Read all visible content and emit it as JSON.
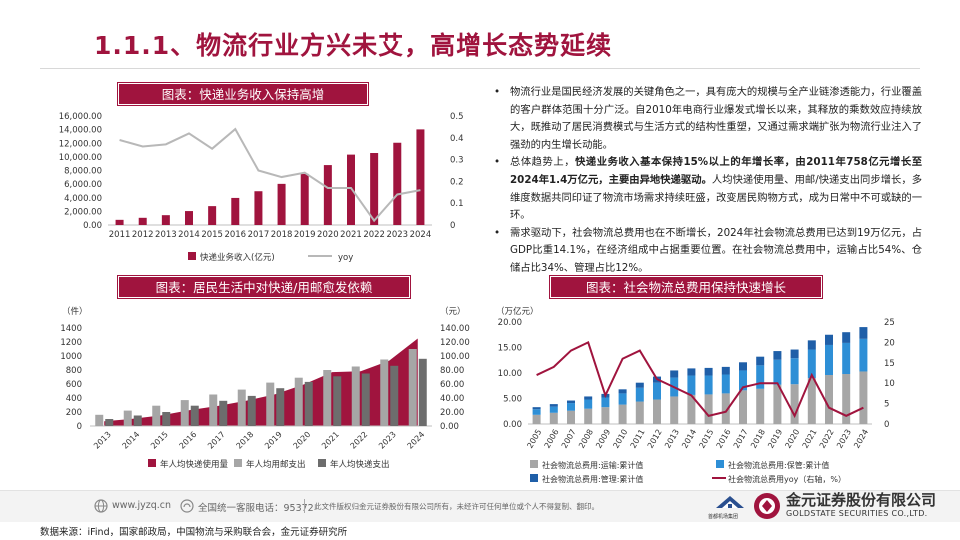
{
  "title": "1.1.1、物流行业方兴未艾，高增长态势延续",
  "banners": {
    "chart1": "图表：快递业务收入保持高增",
    "chart2": "图表：居民生活中对快递/用邮愈发依赖",
    "chart3": "图表：社会物流总费用保持快速增长"
  },
  "bullets": [
    {
      "parts": [
        {
          "t": "物流行业是国民经济发展的关键角色之一，具有庞大的规模与全产业链渗透能力，行业覆盖的客户群体范围十分广泛。自2010年电商行业爆发式增长以来，其释放的乘数效应持续放大，既推动了居民消费模式与生活方式的结构性重塑，又通过需求端扩张为物流行业注入了强劲的内生增长动能。",
          "b": false
        }
      ]
    },
    {
      "parts": [
        {
          "t": "总体趋势上，",
          "b": false
        },
        {
          "t": "快递业务收入基本保持15%以上的年增长率，由2011年758亿元增长至2024年1.4万亿元，主要由异地快递驱动。",
          "b": true
        },
        {
          "t": "人均快递使用量、用邮/快递支出同步增长，多维度数据共同印证了物流市场需求持续旺盛，改变居民购物方式，成为日常中不可或缺的一环。",
          "b": false
        }
      ]
    },
    {
      "parts": [
        {
          "t": "需求驱动下，社会物流总费用也在不断增长，2024年社会物流总费用已达到19万亿元，占GDP比重14.1%，在经济组成中占据重要位置。在社会物流总费用中，运输占比54%、仓储占比34%、管理占比12%。",
          "b": false
        }
      ]
    }
  ],
  "colors": {
    "accent": "#a0143e",
    "line_gray": "#b8b8b8",
    "bar_gray": "#a6a6a6",
    "dark_gray": "#6d6d6d",
    "blue": "#2e8fd6",
    "navy": "#1f5fa8"
  },
  "chart_data": [
    {
      "type": "bar",
      "categories": [
        "2011",
        "2012",
        "2013",
        "2014",
        "2015",
        "2016",
        "2017",
        "2018",
        "2019",
        "2020",
        "2021",
        "2022",
        "2023",
        "2024"
      ],
      "series": [
        {
          "name": "快递业务收入(亿元)",
          "axis": "left",
          "values": [
            758,
            1055,
            1442,
            2045,
            2770,
            3974,
            4957,
            6038,
            7498,
            8795,
            10332,
            10567,
            12074,
            14034
          ]
        },
        {
          "name": "yoy",
          "axis": "right",
          "type": "line",
          "values": [
            0.39,
            0.36,
            0.37,
            0.42,
            0.35,
            0.44,
            0.25,
            0.22,
            0.24,
            0.17,
            0.17,
            0.02,
            0.14,
            0.16
          ]
        }
      ],
      "yticks_left": [
        "0.00",
        "2,000.00",
        "4,000.00",
        "6,000.00",
        "8,000.00",
        "10,000.00",
        "12,000.00",
        "14,000.00",
        "16,000.00"
      ],
      "yticks_right": [
        "0",
        "0.1",
        "0.2",
        "0.3",
        "0.4",
        "0.5"
      ],
      "ylim_left": [
        0,
        16000
      ],
      "ylim_right": [
        0,
        0.5
      ],
      "legend_position": "bottom"
    },
    {
      "type": "bar",
      "categories": [
        "2013",
        "2014",
        "2015",
        "2016",
        "2017",
        "2018",
        "2019",
        "2020",
        "2021",
        "2022",
        "2023",
        "2024"
      ],
      "series": [
        {
          "name": "年人均快递使用量",
          "axis": "left",
          "type": "area",
          "values": [
            67,
            103,
            151,
            227,
            288,
            363,
            454,
            593,
            770,
            782,
            934,
            1250
          ]
        },
        {
          "name": "年人均用邮支出",
          "axis": "right",
          "values": [
            16,
            22,
            29,
            37,
            45,
            52,
            62,
            69,
            80,
            85,
            95,
            110
          ]
        },
        {
          "name": "年人均快递支出",
          "axis": "right",
          "values": [
            10,
            15,
            20,
            29,
            36,
            43,
            54,
            63,
            71,
            75,
            86,
            96
          ]
        }
      ],
      "left_unit": "（件）",
      "right_unit": "（元）",
      "yticks_left": [
        "0",
        "200",
        "400",
        "600",
        "800",
        "1000",
        "1200",
        "1400"
      ],
      "yticks_right": [
        "0.00",
        "20.00",
        "40.00",
        "60.00",
        "80.00",
        "100.00",
        "120.00",
        "140.00"
      ],
      "ylim_left": [
        0,
        1400
      ],
      "ylim_right": [
        0,
        140
      ],
      "legend_position": "bottom"
    },
    {
      "type": "bar",
      "categories": [
        "2005",
        "2006",
        "2007",
        "2008",
        "2009",
        "2010",
        "2011",
        "2012",
        "2013",
        "2014",
        "2015",
        "2016",
        "2017",
        "2018",
        "2019",
        "2020",
        "2021",
        "2022",
        "2023",
        "2024"
      ],
      "series": [
        {
          "name": "社会物流总费用:运输:累计值",
          "axis": "left",
          "values": [
            1.8,
            2.2,
            2.6,
            3.0,
            3.3,
            3.8,
            4.4,
            4.8,
            5.4,
            5.7,
            5.8,
            6.0,
            6.6,
            6.9,
            7.7,
            7.8,
            9.0,
            9.6,
            9.8,
            10.3
          ]
        },
        {
          "name": "社会物流总费用:保管:累计值",
          "axis": "left",
          "values": [
            1.1,
            1.2,
            1.5,
            1.8,
            1.9,
            2.2,
            2.7,
            3.3,
            3.7,
            3.8,
            3.7,
            3.7,
            3.9,
            4.6,
            4.9,
            5.1,
            5.6,
            5.9,
            6.1,
            6.4
          ]
        },
        {
          "name": "社会物流总费用:管理:累计值",
          "axis": "left",
          "values": [
            0.4,
            0.5,
            0.5,
            0.6,
            0.7,
            0.8,
            1.0,
            1.2,
            1.4,
            1.4,
            1.5,
            1.5,
            1.6,
            1.7,
            1.7,
            1.7,
            1.8,
            2.0,
            2.1,
            2.3
          ]
        },
        {
          "name": "社会物流总费用yoy（右轴，%）",
          "axis": "right",
          "type": "line",
          "values": [
            12,
            14,
            18,
            20,
            7,
            16,
            18,
            11,
            9,
            7,
            2,
            3,
            9,
            10,
            10,
            2,
            12,
            4,
            2,
            4
          ]
        }
      ],
      "left_unit": "（万亿元）",
      "yticks_left": [
        "0.00",
        "5.00",
        "10.00",
        "15.00",
        "20.00"
      ],
      "yticks_right": [
        "0",
        "5",
        "10",
        "15",
        "20",
        "25"
      ],
      "ylim_left": [
        0,
        20
      ],
      "ylim_right": [
        0,
        25
      ],
      "legend_position": "bottom"
    }
  ],
  "footer": {
    "website": "www.jyzq.cn",
    "hotline": "全国统一客服电话：95372",
    "copyright": "此文件版权归金元证券股份有限公司所有，未经许可任何单位或个人不得复制、翻印。",
    "partner": "首都机场集团",
    "company_cn": "金元证券股份有限公司",
    "company_en": "GOLDSTATE SECURITIES CO.,LTD."
  },
  "source": "数据来源：iFind，国家邮政局，中国物流与采购联合会，金元证券研究所"
}
